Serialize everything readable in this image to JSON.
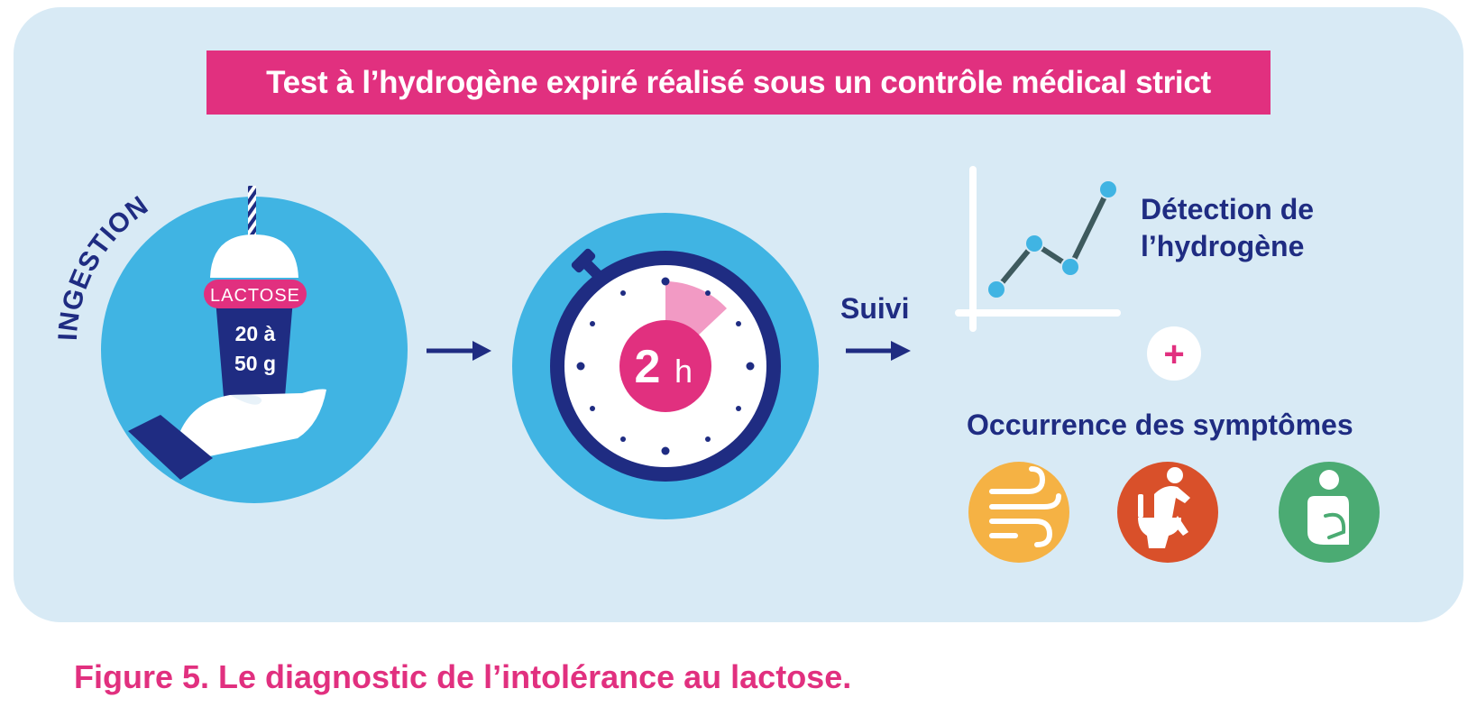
{
  "figure": {
    "banner_title": "Test à l’hydrogène expiré réalisé sous un contrôle médical strict",
    "caption": "Figure 5. Le diagnostic de l’intolérance au lactose."
  },
  "steps": {
    "ingestion": {
      "label": "INGESTION",
      "cup_label": "LACTOSE",
      "dose_line1": "20 à",
      "dose_line2": "50 g"
    },
    "timer": {
      "value": "2",
      "unit": "h"
    },
    "followup": {
      "label": "Suivi"
    }
  },
  "detection": {
    "title_line1": "Détection de",
    "title_line2": "l’hydrogène",
    "plus": "+"
  },
  "symptoms": {
    "title": "Occurrence des symptômes",
    "items": [
      {
        "icon": "gas-flatulence-icon",
        "color": "#f5b244"
      },
      {
        "icon": "toilet-diarrhea-icon",
        "color": "#d9502a"
      },
      {
        "icon": "stomach-pain-icon",
        "color": "#4bab73"
      }
    ]
  },
  "colors": {
    "panel": "#d8eaf5",
    "accent_pink": "#e1307f",
    "navy": "#1f2c82",
    "sky_blue": "#40b4e3"
  }
}
